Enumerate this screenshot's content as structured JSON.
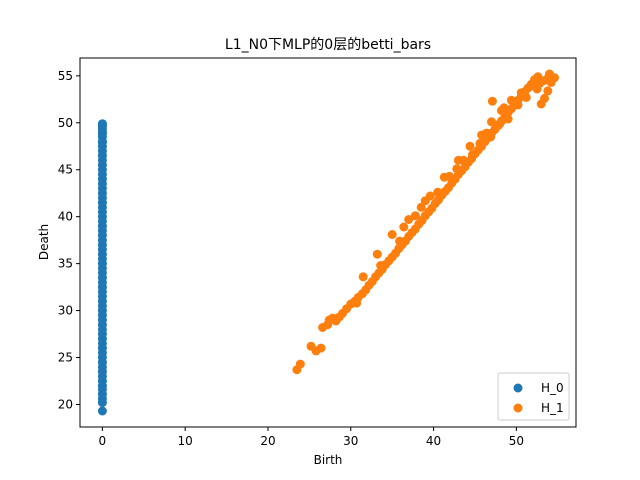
{
  "chart_data": {
    "type": "scatter",
    "title": "L1_N0下MLP的0层的betti_bars",
    "xlabel": "Birth",
    "ylabel": "Death",
    "xlim": [
      -2.7,
      57.2
    ],
    "ylim": [
      17.6,
      56.9
    ],
    "xticks": [
      0,
      10,
      20,
      30,
      40,
      50
    ],
    "yticks": [
      20,
      25,
      30,
      35,
      40,
      45,
      50,
      55
    ],
    "grid": false,
    "legend_position": "bottom-right",
    "series": [
      {
        "name": "H_0",
        "color": "#1f77b4",
        "x": [
          0,
          0,
          0,
          0,
          0,
          0,
          0,
          0,
          0,
          0,
          0,
          0,
          0,
          0,
          0,
          0,
          0,
          0,
          0,
          0,
          0,
          0,
          0,
          0,
          0,
          0,
          0,
          0,
          0,
          0,
          0,
          0,
          0,
          0,
          0,
          0,
          0,
          0,
          0,
          0,
          0,
          0,
          0,
          0,
          0,
          0,
          0,
          0,
          0,
          0,
          0,
          0,
          0,
          0,
          0,
          0,
          0,
          0,
          0,
          0,
          0,
          0,
          0,
          0,
          0,
          0
        ],
        "y": [
          19.3,
          20.2,
          20.6,
          21.1,
          21.6,
          22.0,
          22.5,
          23.0,
          23.5,
          24.0,
          24.5,
          25.0,
          25.5,
          26.0,
          26.5,
          27.0,
          27.5,
          28.0,
          28.5,
          29.0,
          29.5,
          30.0,
          30.5,
          31.0,
          31.5,
          32.0,
          32.5,
          33.0,
          33.5,
          34.0,
          34.5,
          35.0,
          35.5,
          36.0,
          36.5,
          37.0,
          37.5,
          38.0,
          38.5,
          39.0,
          39.5,
          40.0,
          40.5,
          41.0,
          41.5,
          42.0,
          42.5,
          43.0,
          43.5,
          44.0,
          44.5,
          45.0,
          45.5,
          46.0,
          46.5,
          47.0,
          47.5,
          48.0,
          48.5,
          49.0,
          49.3,
          49.6,
          49.8,
          49.9,
          48.8,
          47.9
        ]
      },
      {
        "name": "H_1",
        "color": "#ff7f0e",
        "x": [
          23.5,
          23.9,
          25.2,
          25.8,
          26.4,
          26.6,
          27.2,
          27.4,
          27.8,
          28.2,
          28.6,
          29.0,
          29.5,
          30.0,
          30.5,
          30.9,
          31.4,
          31.8,
          32.2,
          32.6,
          33.0,
          33.4,
          33.8,
          34.2,
          34.6,
          35.0,
          35.4,
          35.8,
          36.2,
          36.6,
          37.0,
          37.4,
          37.8,
          38.2,
          38.6,
          39.0,
          39.4,
          39.8,
          40.2,
          40.6,
          41.0,
          41.4,
          41.8,
          42.2,
          42.6,
          43.0,
          43.4,
          43.8,
          44.2,
          44.6,
          45.0,
          45.4,
          45.8,
          46.2,
          46.6,
          47.0,
          47.4,
          47.8,
          48.2,
          48.6,
          49.0,
          49.4,
          49.8,
          50.2,
          50.6,
          51.0,
          51.4,
          51.8,
          52.2,
          52.6,
          53.0,
          53.4,
          53.8,
          54.2,
          54.6,
          30.7,
          31.5,
          33.6,
          35.9,
          37.8,
          39.6,
          41.3,
          43.0,
          44.4,
          45.8,
          47.0,
          48.2,
          49.4,
          50.6,
          51.7,
          52.8,
          53.9,
          47.1,
          48.5,
          54.0,
          35.0,
          37.0,
          40.5,
          42.8,
          45.6,
          48.0,
          50.2,
          52.5,
          33.2,
          36.4,
          39.0,
          41.9,
          44.7,
          46.9,
          49.0,
          51.2,
          53.4,
          38.5,
          43.6,
          46.4
        ],
        "y": [
          23.7,
          24.3,
          26.2,
          25.7,
          26.0,
          28.2,
          28.5,
          29.0,
          29.2,
          28.9,
          29.3,
          29.7,
          30.2,
          30.7,
          31.0,
          31.4,
          31.8,
          32.2,
          32.7,
          33.1,
          33.6,
          34.0,
          34.4,
          34.9,
          35.3,
          35.7,
          36.1,
          36.6,
          37.0,
          37.4,
          37.9,
          38.3,
          38.7,
          39.2,
          39.6,
          40.1,
          40.5,
          40.9,
          41.4,
          41.8,
          42.3,
          42.7,
          43.1,
          43.6,
          44.0,
          44.5,
          44.9,
          45.3,
          45.8,
          46.2,
          46.7,
          47.1,
          47.5,
          48.0,
          48.4,
          48.9,
          49.3,
          49.7,
          50.2,
          50.6,
          51.1,
          51.5,
          51.9,
          52.4,
          52.8,
          53.3,
          53.7,
          54.1,
          54.6,
          54.9,
          52.0,
          52.6,
          53.4,
          54.3,
          54.8,
          30.8,
          33.6,
          34.8,
          37.4,
          40.1,
          42.2,
          44.2,
          46.0,
          47.5,
          48.7,
          50.1,
          51.3,
          52.4,
          53.2,
          53.9,
          54.2,
          54.9,
          52.3,
          51.6,
          55.2,
          38.1,
          39.7,
          42.6,
          45.1,
          47.8,
          49.9,
          51.9,
          53.6,
          36.0,
          38.9,
          41.7,
          44.3,
          46.6,
          48.5,
          50.4,
          52.7,
          54.5,
          41.0,
          46.0,
          48.9
        ]
      }
    ]
  }
}
